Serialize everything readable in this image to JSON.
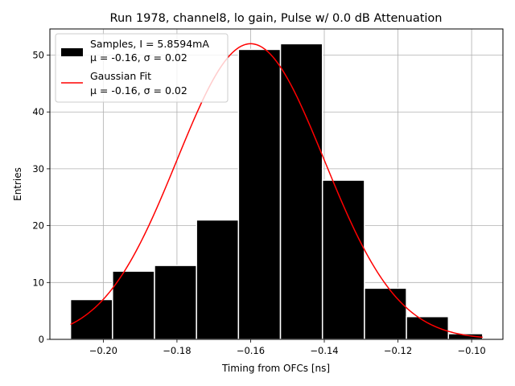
{
  "chart_data": {
    "type": "histogram",
    "title": "Run 1978, channel8, lo gain, Pulse w/ 0.0 dB Attenuation",
    "xlabel": "Timing from OFCs [ns]",
    "ylabel": "Entries",
    "xlim": [
      -0.2145,
      -0.0915
    ],
    "ylim": [
      0,
      54.6
    ],
    "grid": true,
    "x_ticks": [
      -0.2,
      -0.18,
      -0.16,
      -0.14,
      -0.12,
      -0.1
    ],
    "x_tick_labels": [
      "−0.20",
      "−0.18",
      "−0.16",
      "−0.14",
      "−0.12",
      "−0.10"
    ],
    "y_ticks": [
      0,
      10,
      20,
      30,
      40,
      50
    ],
    "y_tick_labels": [
      "0",
      "10",
      "20",
      "30",
      "40",
      "50"
    ],
    "bins": [
      {
        "x0": -0.2089,
        "x1": -0.1975,
        "count": 7
      },
      {
        "x0": -0.1975,
        "x1": -0.1861,
        "count": 12
      },
      {
        "x0": -0.1861,
        "x1": -0.1747,
        "count": 13
      },
      {
        "x0": -0.1747,
        "x1": -0.1633,
        "count": 21
      },
      {
        "x0": -0.1633,
        "x1": -0.1519,
        "count": 51
      },
      {
        "x0": -0.1519,
        "x1": -0.1405,
        "count": 52
      },
      {
        "x0": -0.1405,
        "x1": -0.1291,
        "count": 28
      },
      {
        "x0": -0.1291,
        "x1": -0.1177,
        "count": 9
      },
      {
        "x0": -0.1177,
        "x1": -0.1063,
        "count": 4
      },
      {
        "x0": -0.1063,
        "x1": -0.097,
        "count": 1
      }
    ],
    "fit": {
      "type": "gaussian",
      "amplitude": 52,
      "mean": -0.16,
      "sigma": 0.02,
      "x_range": [
        -0.2089,
        -0.097
      ]
    },
    "legend": {
      "position": "upper-left",
      "entries": [
        {
          "name": "Samples, I = 5.8594mA",
          "line2": "μ = -0.16, σ = 0.02",
          "kind": "patch",
          "color": "#000000"
        },
        {
          "name": "Gaussian Fit",
          "line2": "μ = -0.16, σ = 0.02",
          "kind": "line",
          "color": "#ff0000"
        }
      ]
    },
    "colors": {
      "bar": "#000000",
      "bar_edge": "#ffffff",
      "fit": "#ff0000",
      "grid": "#b0b0b0"
    }
  }
}
